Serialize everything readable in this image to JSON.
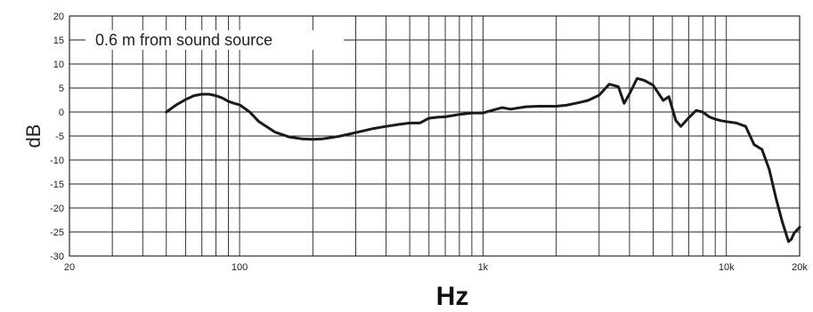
{
  "chart_data": {
    "type": "line",
    "xlabel": "Hz",
    "ylabel": "dB",
    "x_scale": "log",
    "xlim": [
      20,
      20000
    ],
    "ylim": [
      -30,
      20
    ],
    "grid": true,
    "annotation": "0.6 m from sound source",
    "x_ticks": [
      {
        "value": 20,
        "label": "20"
      },
      {
        "value": 100,
        "label": "100"
      },
      {
        "value": 1000,
        "label": "1k"
      },
      {
        "value": 10000,
        "label": "10k"
      },
      {
        "value": 20000,
        "label": "20k"
      }
    ],
    "y_ticks": [
      20,
      15,
      10,
      5,
      0,
      -5,
      -10,
      -15,
      -20,
      -25,
      -30
    ],
    "line_color": "#1a1a1a",
    "series": [
      {
        "x": [
          50,
          55,
          60,
          65,
          70,
          75,
          80,
          85,
          90,
          95,
          100,
          110,
          120,
          140,
          160,
          180,
          200,
          220,
          240,
          260,
          300,
          350,
          400,
          450,
          500,
          550,
          600,
          650,
          700,
          800,
          900,
          1000,
          1100,
          1200,
          1300,
          1500,
          1700,
          2000,
          2200,
          2500,
          2700,
          3000,
          3300,
          3600,
          3800,
          4000,
          4300,
          4600,
          5000,
          5500,
          5800,
          6200,
          6500,
          7000,
          7500,
          8000,
          8500,
          9000,
          9500,
          10000,
          11000,
          12000,
          13000,
          14000,
          15000,
          16000,
          17000,
          18000,
          18500,
          19000,
          20000
        ],
        "y": [
          0,
          1.5,
          2.6,
          3.4,
          3.7,
          3.7,
          3.4,
          2.9,
          2.2,
          1.8,
          1.5,
          0,
          -2,
          -4.2,
          -5.2,
          -5.6,
          -5.7,
          -5.6,
          -5.3,
          -5,
          -4.3,
          -3.5,
          -3,
          -2.6,
          -2.3,
          -2.3,
          -1.3,
          -1.1,
          -1,
          -0.5,
          -0.2,
          -0.2,
          0.4,
          0.9,
          0.6,
          1.1,
          1.2,
          1.2,
          1.4,
          2,
          2.4,
          3.5,
          5.8,
          5.3,
          1.8,
          3.8,
          7,
          6.6,
          5.6,
          2.4,
          3.2,
          -1.8,
          -3,
          -1.2,
          0.3,
          0,
          -1,
          -1.5,
          -1.8,
          -2,
          -2.3,
          -3,
          -6.8,
          -7.8,
          -12,
          -18,
          -23,
          -27,
          -26.5,
          -25.2,
          -24
        ]
      }
    ]
  }
}
